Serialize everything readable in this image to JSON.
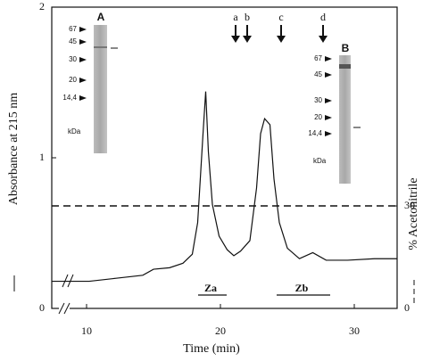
{
  "chart_data": {
    "type": "line",
    "xlabel": "Time (min)",
    "ylabel": "Absorbance at 215 nm",
    "y2label": "% Acetonitrile",
    "x": [
      7.4,
      10.2,
      12.2,
      14.2,
      15,
      16.2,
      17.2,
      17.9,
      18.3,
      18.7,
      18.9,
      19.1,
      19.4,
      19.9,
      20.5,
      21,
      21.5,
      22.2,
      22.7,
      23,
      23.3,
      23.7,
      24,
      24.4,
      25,
      25.9,
      26.9,
      27.9,
      29.5,
      31.5,
      33.2
    ],
    "series": [
      {
        "color": "#111111",
        "values": [
          0.18,
          0.18,
          0.2,
          0.22,
          0.26,
          0.27,
          0.3,
          0.36,
          0.57,
          1.16,
          1.44,
          1.04,
          0.69,
          0.48,
          0.39,
          0.35,
          0.38,
          0.45,
          0.8,
          1.16,
          1.26,
          1.22,
          0.86,
          0.57,
          0.4,
          0.33,
          0.37,
          0.32,
          0.32,
          0.33,
          0.33
        ]
      }
    ],
    "reference_lines": [
      {
        "axis": "y2",
        "value": 30,
        "style": "dashed"
      }
    ],
    "xlim": [
      7.4,
      33.2
    ],
    "ylim": [
      0,
      2
    ],
    "y2lim": [
      0,
      88.2
    ],
    "xticks": [
      10,
      20,
      30
    ],
    "yticks": [
      0,
      1,
      2
    ],
    "y2ticks": [
      0,
      30
    ],
    "arrows": [
      "a",
      "b",
      "c",
      "d"
    ],
    "fractions": [
      "Za",
      "Zb"
    ],
    "insets": [
      {
        "label": "A",
        "markers": [
          "67",
          "45",
          "30",
          "20",
          "14,4"
        ],
        "unit": "kDa"
      },
      {
        "label": "B",
        "markers": [
          "67",
          "45",
          "30",
          "20",
          "14,4"
        ],
        "unit": "kDa"
      }
    ]
  }
}
